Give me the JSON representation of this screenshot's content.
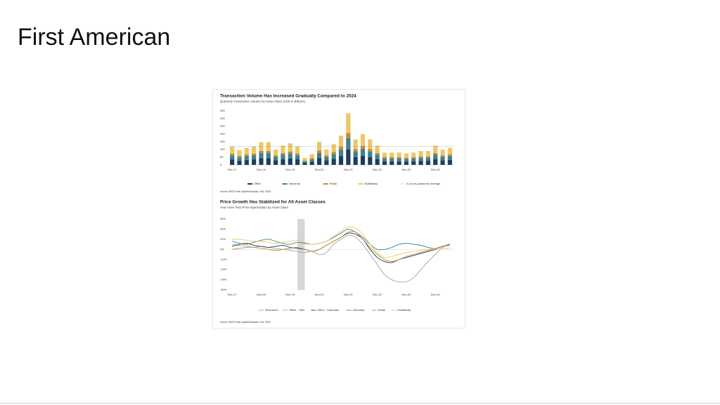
{
  "slide_title": "First American",
  "chart_data": [
    {
      "type": "bar",
      "stacked": true,
      "title": "Transaction Volume Has Increased Gradually Compared to 2024",
      "subtitle": "Quarterly Transaction Volume by Asset Class (USD in Billions)",
      "source": "Source: MSCI Real Capital Analytics, Sep. 2025",
      "categories": [
        "Dec-17",
        null,
        null,
        null,
        "Dec-18",
        null,
        null,
        null,
        "Dec-19",
        null,
        null,
        null,
        "Dec-20",
        null,
        null,
        null,
        "Dec-21",
        null,
        null,
        null,
        "Dec-22",
        null,
        null,
        null,
        "Dec-23",
        null,
        null,
        null,
        "Dec-24",
        null,
        null
      ],
      "series": [
        {
          "name": "Office",
          "color": "#1d3d5c",
          "values": [
            36,
            28,
            33,
            36,
            44,
            44,
            30,
            38,
            42,
            36,
            14,
            21,
            45,
            30,
            40,
            57,
            100,
            50,
            60,
            50,
            38,
            24,
            24,
            24,
            22,
            24,
            27,
            27,
            38,
            30,
            33
          ]
        },
        {
          "name": "Industrial",
          "color": "#3b8291",
          "values": [
            26,
            21,
            24,
            26,
            33,
            33,
            22,
            28,
            31,
            26,
            10,
            15,
            33,
            22,
            30,
            42,
            74,
            36,
            44,
            36,
            28,
            18,
            18,
            18,
            17,
            18,
            20,
            20,
            28,
            22,
            24
          ]
        },
        {
          "name": "Retail",
          "color": "#c8892d",
          "values": [
            12,
            10,
            11,
            12,
            15,
            15,
            10,
            12,
            14,
            12,
            4,
            7,
            15,
            10,
            14,
            19,
            33,
            16,
            20,
            16,
            12,
            8,
            8,
            8,
            8,
            8,
            9,
            9,
            12,
            10,
            11
          ]
        },
        {
          "name": "Multifamily",
          "color": "#ecc866",
          "values": [
            46,
            36,
            42,
            46,
            56,
            56,
            38,
            47,
            53,
            46,
            17,
            27,
            57,
            38,
            51,
            72,
            128,
            63,
            76,
            63,
            47,
            30,
            30,
            30,
            28,
            30,
            34,
            34,
            47,
            38,
            42
          ]
        }
      ],
      "reference_line": {
        "name": "5-yr pre-pandemic average",
        "value": 120,
        "color": "#8c8c8c"
      },
      "ylim": [
        0,
        350
      ],
      "yticks": [
        0,
        50,
        100,
        150,
        200,
        250,
        300,
        350
      ],
      "grid": false
    },
    {
      "type": "line",
      "title": "Price Growth Has Stabilized for All Asset Classes",
      "subtitle": "Year-Over-Year Price Appreciation by Asset Class",
      "source": "Source: MSCI Real Capital Analytics, Oct. 2025",
      "categories": [
        "Dec-17",
        null,
        null,
        null,
        "Dec-18",
        null,
        null,
        null,
        "Dec-19",
        null,
        null,
        null,
        "Dec-20",
        null,
        null,
        null,
        "Dec-21",
        null,
        null,
        null,
        "Dec-22",
        null,
        null,
        null,
        "Dec-23",
        null,
        null,
        null,
        "Dec-24",
        null,
        null
      ],
      "recession": {
        "name": "Recession",
        "color": "#d6d6d6",
        "span": [
          9,
          10
        ]
      },
      "series": [
        {
          "name": "Office - CBD",
          "color": "#a6a6a6",
          "values": [
            5,
            4,
            3,
            2,
            3,
            2,
            1,
            0,
            -1,
            -2,
            -3,
            -2,
            -5,
            -3,
            5,
            10,
            14,
            12,
            5,
            -5,
            -15,
            -25,
            -30,
            -32,
            -32,
            -28,
            -20,
            -12,
            -5,
            2,
            5
          ]
        },
        {
          "name": "Office - Suburban",
          "color": "#1d3d5c",
          "values": [
            3,
            5,
            6,
            4,
            3,
            2,
            3,
            4,
            2,
            1,
            0,
            -2,
            0,
            4,
            8,
            12,
            16,
            15,
            10,
            0,
            -8,
            -12,
            -13,
            -10,
            -8,
            -6,
            -4,
            -2,
            0,
            3,
            5
          ]
        },
        {
          "name": "Industrial",
          "color": "#3b8291",
          "values": [
            8,
            6,
            5,
            7,
            9,
            10,
            8,
            6,
            5,
            7,
            6,
            5,
            6,
            8,
            12,
            16,
            20,
            17,
            12,
            5,
            0,
            0,
            2,
            5,
            6,
            5,
            4,
            2,
            1,
            3,
            5
          ]
        },
        {
          "name": "Retail",
          "color": "#c8892d",
          "values": [
            0,
            1,
            2,
            2,
            1,
            0,
            -1,
            0,
            1,
            2,
            0,
            -2,
            0,
            4,
            8,
            12,
            17,
            17,
            10,
            2,
            -5,
            -10,
            -12,
            -10,
            -7,
            -5,
            -3,
            -1,
            1,
            3,
            4
          ]
        },
        {
          "name": "Multifamily",
          "color": "#ecc866",
          "values": [
            10,
            10,
            9,
            8,
            8,
            7,
            6,
            7,
            8,
            9,
            7,
            5,
            6,
            8,
            13,
            18,
            22,
            21,
            15,
            5,
            -3,
            -8,
            -7,
            -5,
            -3,
            -2,
            -1,
            0,
            1,
            1,
            1
          ]
        }
      ],
      "ylim": [
        -40,
        30
      ],
      "yticks": [
        {
          "value": -40,
          "label": "-40%"
        },
        {
          "value": -30,
          "label": "-30%"
        },
        {
          "value": -20,
          "label": "-20%"
        },
        {
          "value": -10,
          "label": "-10%"
        },
        {
          "value": 0,
          "label": "0%"
        },
        {
          "value": 10,
          "label": "10%"
        },
        {
          "value": 20,
          "label": "20%"
        },
        {
          "value": 30,
          "label": "30%"
        }
      ],
      "grid": false
    }
  ]
}
